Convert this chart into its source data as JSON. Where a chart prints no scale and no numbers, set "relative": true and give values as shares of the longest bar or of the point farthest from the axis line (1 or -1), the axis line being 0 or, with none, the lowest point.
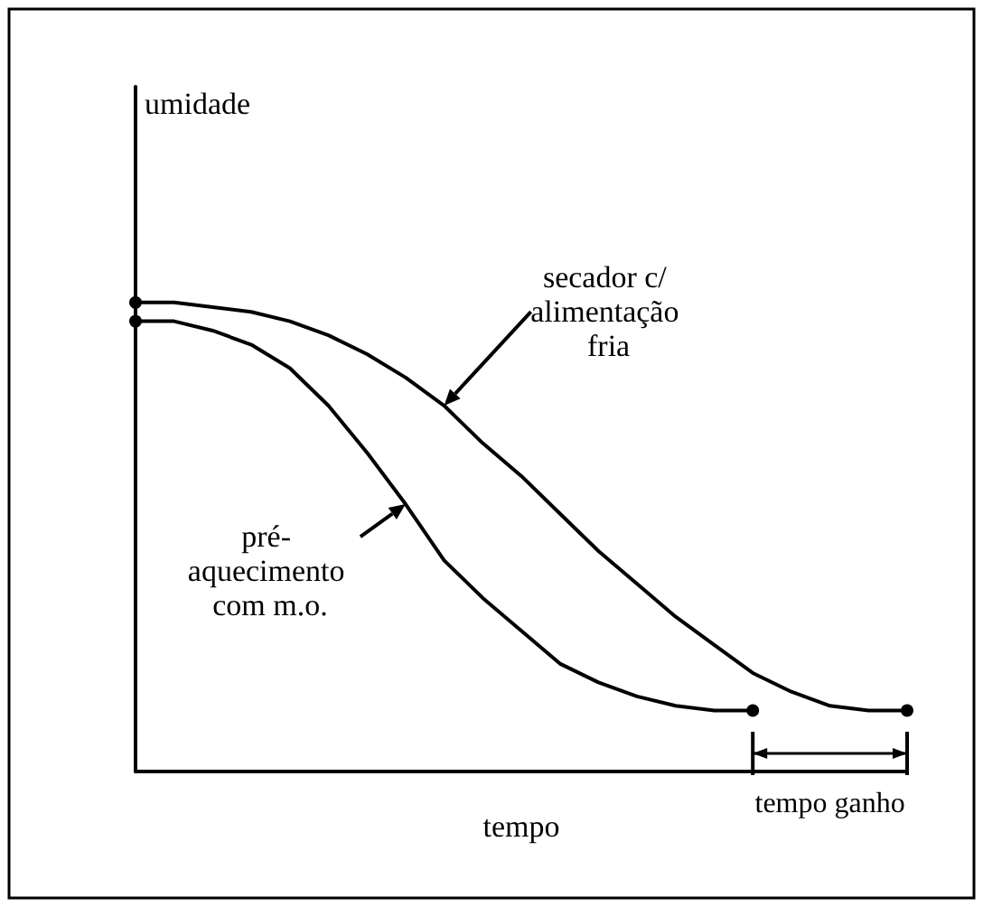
{
  "chart_data": {
    "type": "line",
    "relative": true,
    "xlabel": "tempo",
    "line_style": "solid",
    "categories": [
      null,
      null,
      null,
      null,
      null,
      null,
      null,
      null,
      null,
      null,
      null,
      null,
      null,
      null,
      null,
      null,
      null,
      null,
      null,
      null,
      null
    ],
    "series": [
      {
        "color": "#000000",
        "values": [
          1.0,
          1.0,
          0.99,
          0.98,
          0.96,
          0.93,
          0.89,
          0.84,
          0.78,
          0.7,
          0.63,
          0.55,
          0.47,
          0.4,
          0.33,
          0.27,
          0.21,
          0.17,
          0.14,
          0.13,
          0.13
        ]
      },
      {
        "color": "#000000",
        "values": [
          0.96,
          0.96,
          0.94,
          0.91,
          0.86,
          0.78,
          0.68,
          0.57,
          0.45,
          0.37,
          0.3,
          0.23,
          0.19,
          0.16,
          0.14,
          0.13,
          0.13,
          null,
          null,
          null,
          null
        ]
      }
    ],
    "annotations": [
      "umidade",
      "secador c/ alimentação fria",
      "pré- aquecimento com m.o.",
      "tempo ganho"
    ]
  }
}
